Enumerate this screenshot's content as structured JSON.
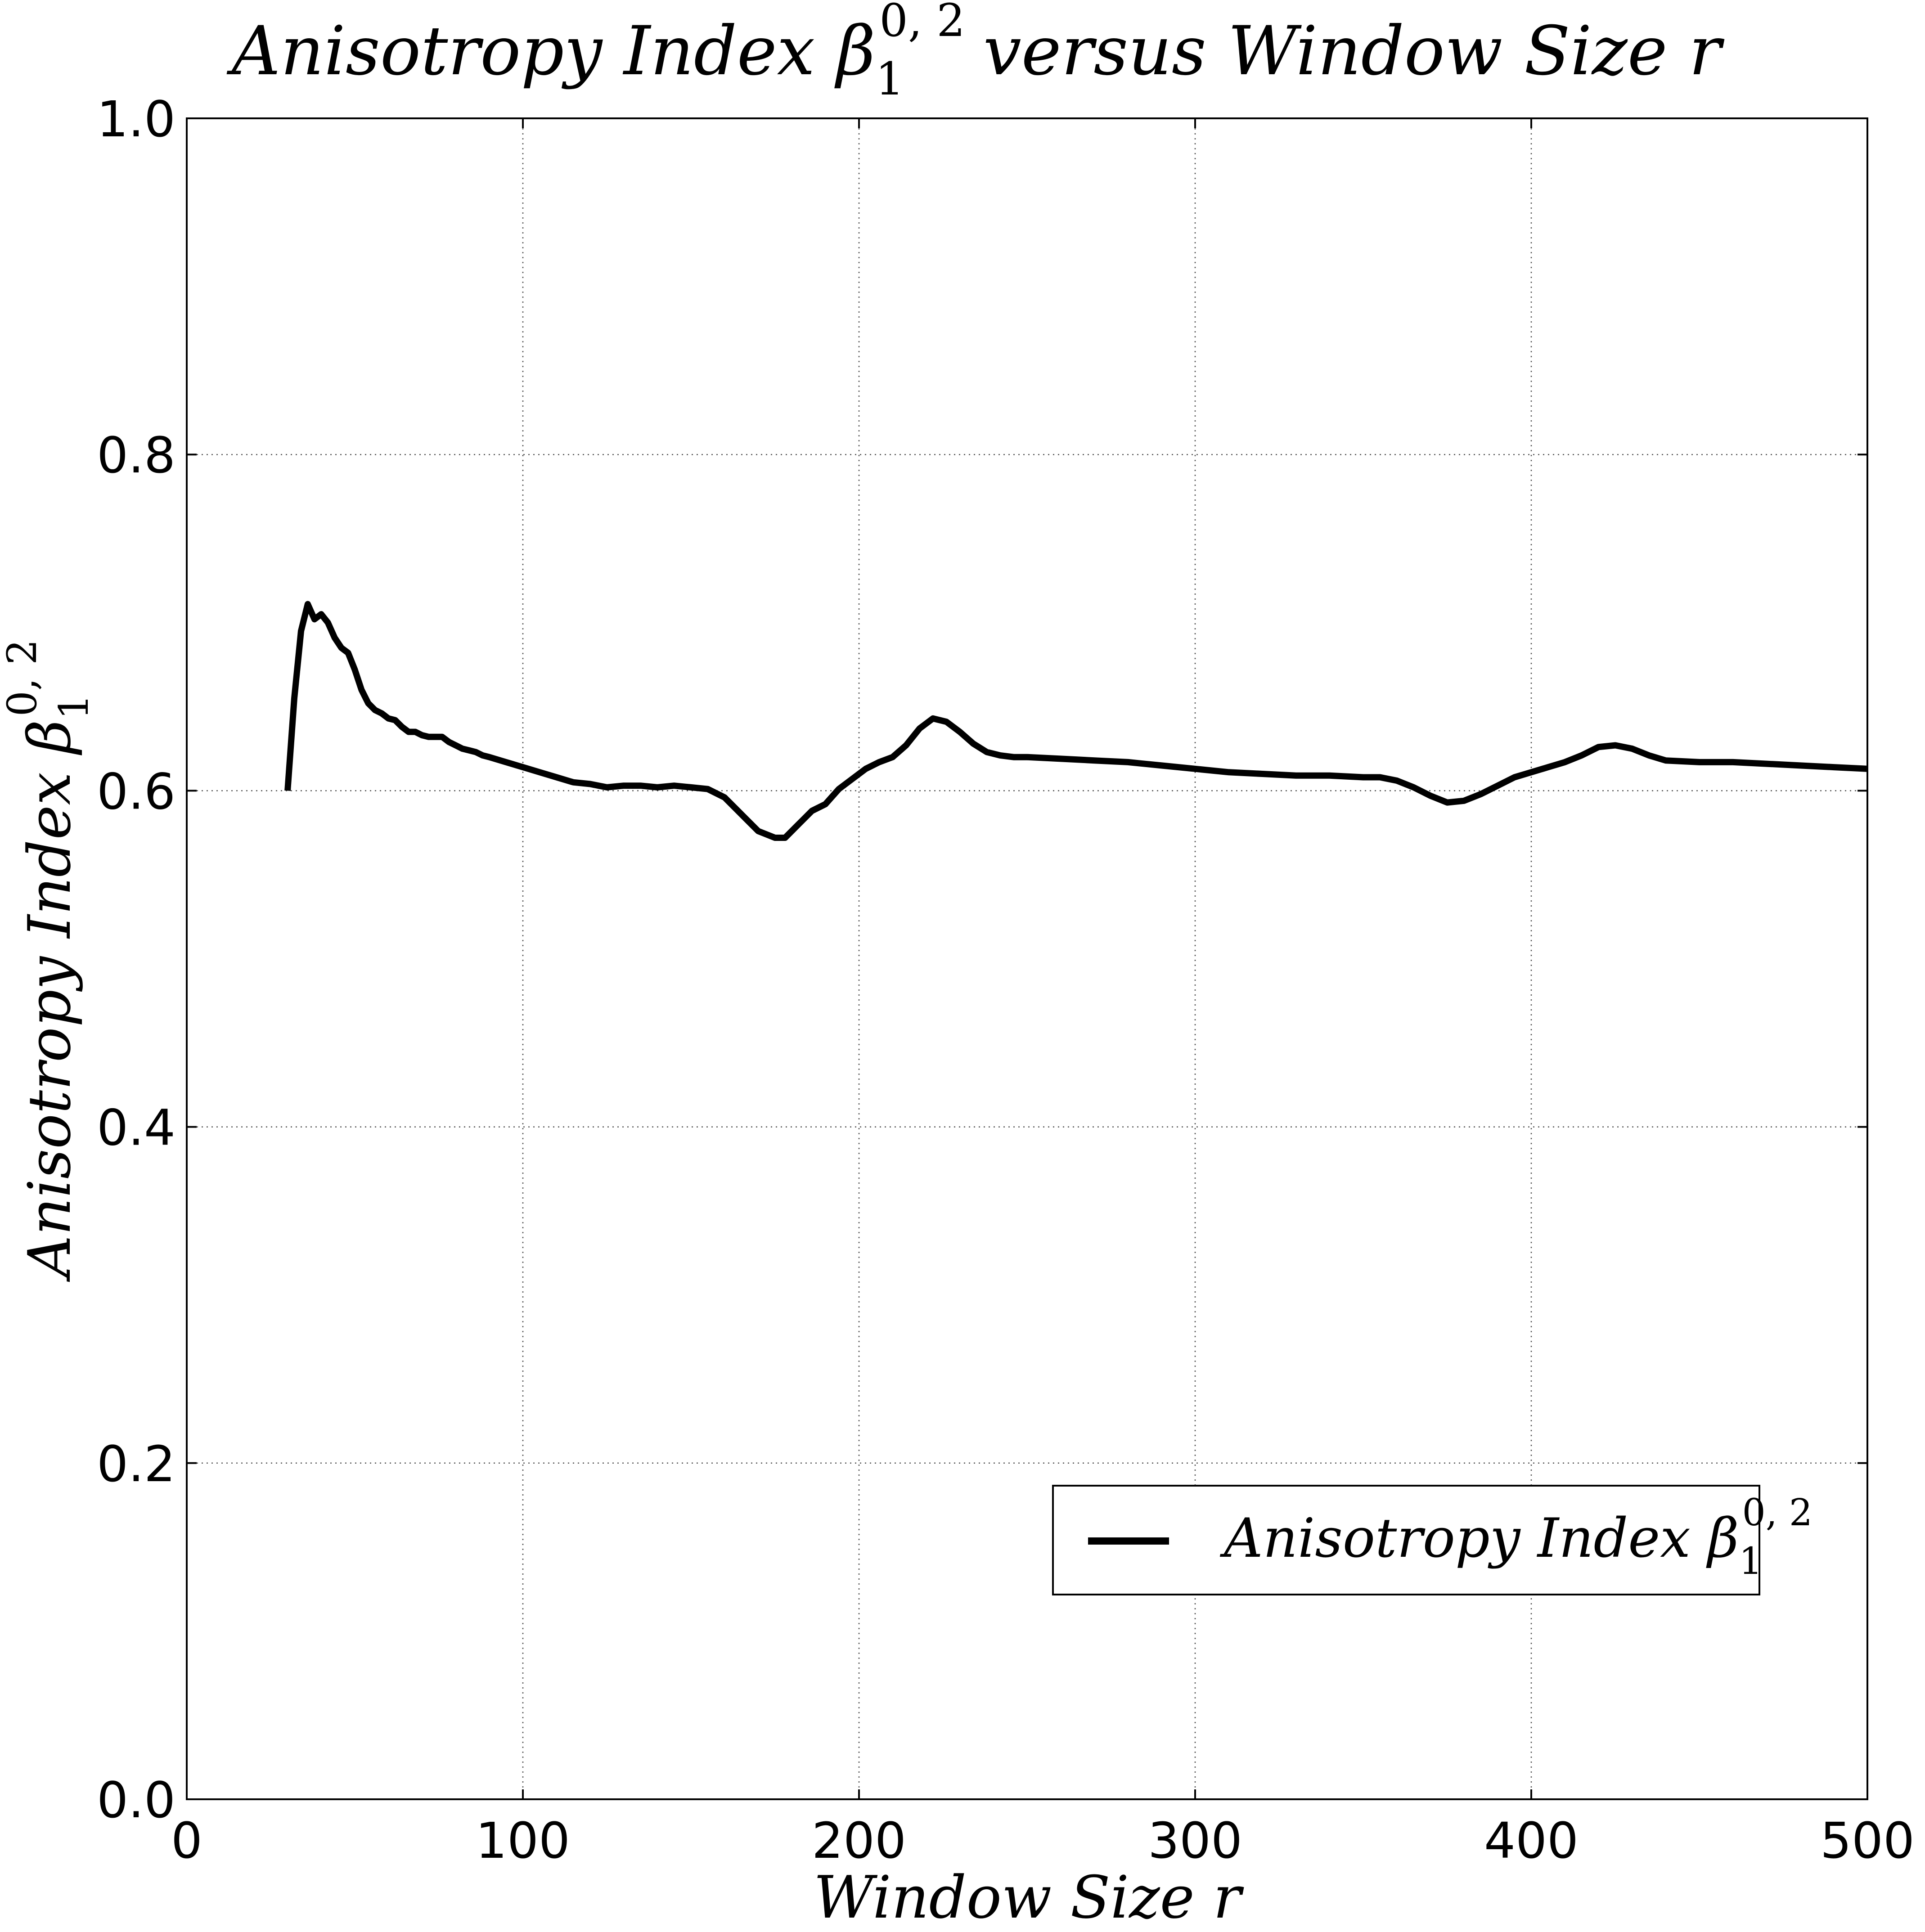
{
  "chart_data": {
    "type": "line",
    "title": "Anisotropy Index β1^{0,2} versus Window Size r",
    "title_main": "Anisotropy Index β",
    "title_tail": "versus Window Size r",
    "symbol_base": "β",
    "symbol_sub": "1",
    "symbol_sup": "0, 2",
    "xlabel": "Window Size r",
    "ylabel": "Anisotropy Index β1^{0,2}",
    "ylabel_main": "Anisotropy Index β",
    "xlim": [
      0,
      500
    ],
    "ylim": [
      0.0,
      1.0
    ],
    "x_ticks": [
      0,
      100,
      200,
      300,
      400,
      500
    ],
    "x_tick_labels": [
      "0",
      "100",
      "200",
      "300",
      "400",
      "500"
    ],
    "y_ticks": [
      0.0,
      0.2,
      0.4,
      0.6,
      0.8,
      1.0
    ],
    "y_tick_labels": [
      "0.0",
      "0.2",
      "0.4",
      "0.6",
      "0.8",
      "1.0"
    ],
    "grid": true,
    "legend_position": "lower-right",
    "series": [
      {
        "name": "Anisotropy Index β1^{0,2}",
        "legend_label": "Anisotropy Index β",
        "color": "#000000",
        "x": [
          30,
          32,
          34,
          36,
          38,
          40,
          42,
          44,
          46,
          48,
          50,
          52,
          54,
          56,
          58,
          60,
          62,
          64,
          66,
          68,
          70,
          72,
          74,
          76,
          78,
          80,
          82,
          84,
          86,
          88,
          90,
          95,
          100,
          105,
          110,
          115,
          120,
          125,
          130,
          135,
          140,
          145,
          150,
          155,
          160,
          165,
          170,
          175,
          178,
          182,
          186,
          190,
          194,
          198,
          202,
          206,
          210,
          214,
          218,
          222,
          226,
          230,
          234,
          238,
          242,
          246,
          250,
          260,
          270,
          280,
          290,
          300,
          310,
          320,
          330,
          340,
          350,
          355,
          360,
          365,
          370,
          375,
          380,
          385,
          390,
          395,
          400,
          405,
          410,
          415,
          420,
          425,
          430,
          435,
          440,
          450,
          460,
          470,
          480,
          490,
          500
        ],
        "values": [
          0.6,
          0.655,
          0.695,
          0.711,
          0.702,
          0.705,
          0.7,
          0.691,
          0.685,
          0.682,
          0.672,
          0.66,
          0.652,
          0.648,
          0.646,
          0.643,
          0.642,
          0.638,
          0.635,
          0.635,
          0.633,
          0.632,
          0.632,
          0.632,
          0.629,
          0.627,
          0.625,
          0.624,
          0.623,
          0.621,
          0.62,
          0.617,
          0.614,
          0.611,
          0.608,
          0.605,
          0.604,
          0.602,
          0.603,
          0.603,
          0.602,
          0.603,
          0.602,
          0.601,
          0.596,
          0.586,
          0.576,
          0.572,
          0.572,
          0.58,
          0.588,
          0.592,
          0.601,
          0.607,
          0.613,
          0.617,
          0.62,
          0.627,
          0.637,
          0.643,
          0.641,
          0.635,
          0.628,
          0.623,
          0.621,
          0.62,
          0.62,
          0.619,
          0.618,
          0.617,
          0.615,
          0.613,
          0.611,
          0.61,
          0.609,
          0.609,
          0.608,
          0.608,
          0.606,
          0.602,
          0.597,
          0.593,
          0.594,
          0.598,
          0.603,
          0.608,
          0.611,
          0.614,
          0.617,
          0.621,
          0.626,
          0.627,
          0.625,
          0.621,
          0.618,
          0.617,
          0.617,
          0.616,
          0.615,
          0.614,
          0.613
        ]
      }
    ]
  }
}
